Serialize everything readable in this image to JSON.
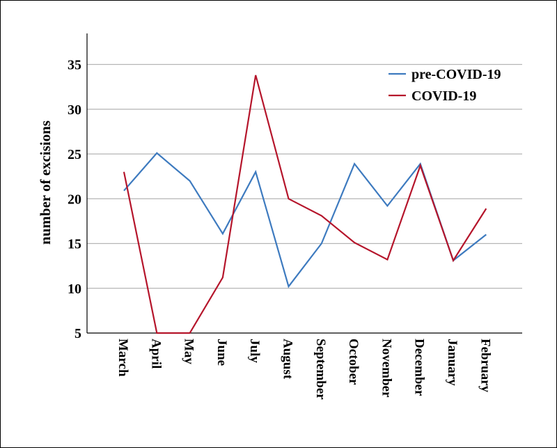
{
  "chart_data": {
    "type": "line",
    "title": "",
    "xlabel": "",
    "ylabel": "number of excisions",
    "categories": [
      "March",
      "April",
      "May",
      "June",
      "July",
      "August",
      "September",
      "October",
      "November",
      "December",
      "January",
      "February"
    ],
    "ylim": [
      5,
      38
    ],
    "yticks": [
      5,
      10,
      15,
      20,
      25,
      30,
      35
    ],
    "grid": true,
    "legend_position": "top-right",
    "series": [
      {
        "name": "pre-COVID-19",
        "color": "#3d7abf",
        "values": [
          20.9,
          25.1,
          22.0,
          16.1,
          23.0,
          10.2,
          15.0,
          23.9,
          19.2,
          23.9,
          13.1,
          16.0
        ]
      },
      {
        "name": "COVID-19",
        "color": "#b5152b",
        "values": [
          23.0,
          5.0,
          5.0,
          11.2,
          33.8,
          20.0,
          18.1,
          15.1,
          13.2,
          23.7,
          13.1,
          18.9
        ]
      }
    ]
  }
}
